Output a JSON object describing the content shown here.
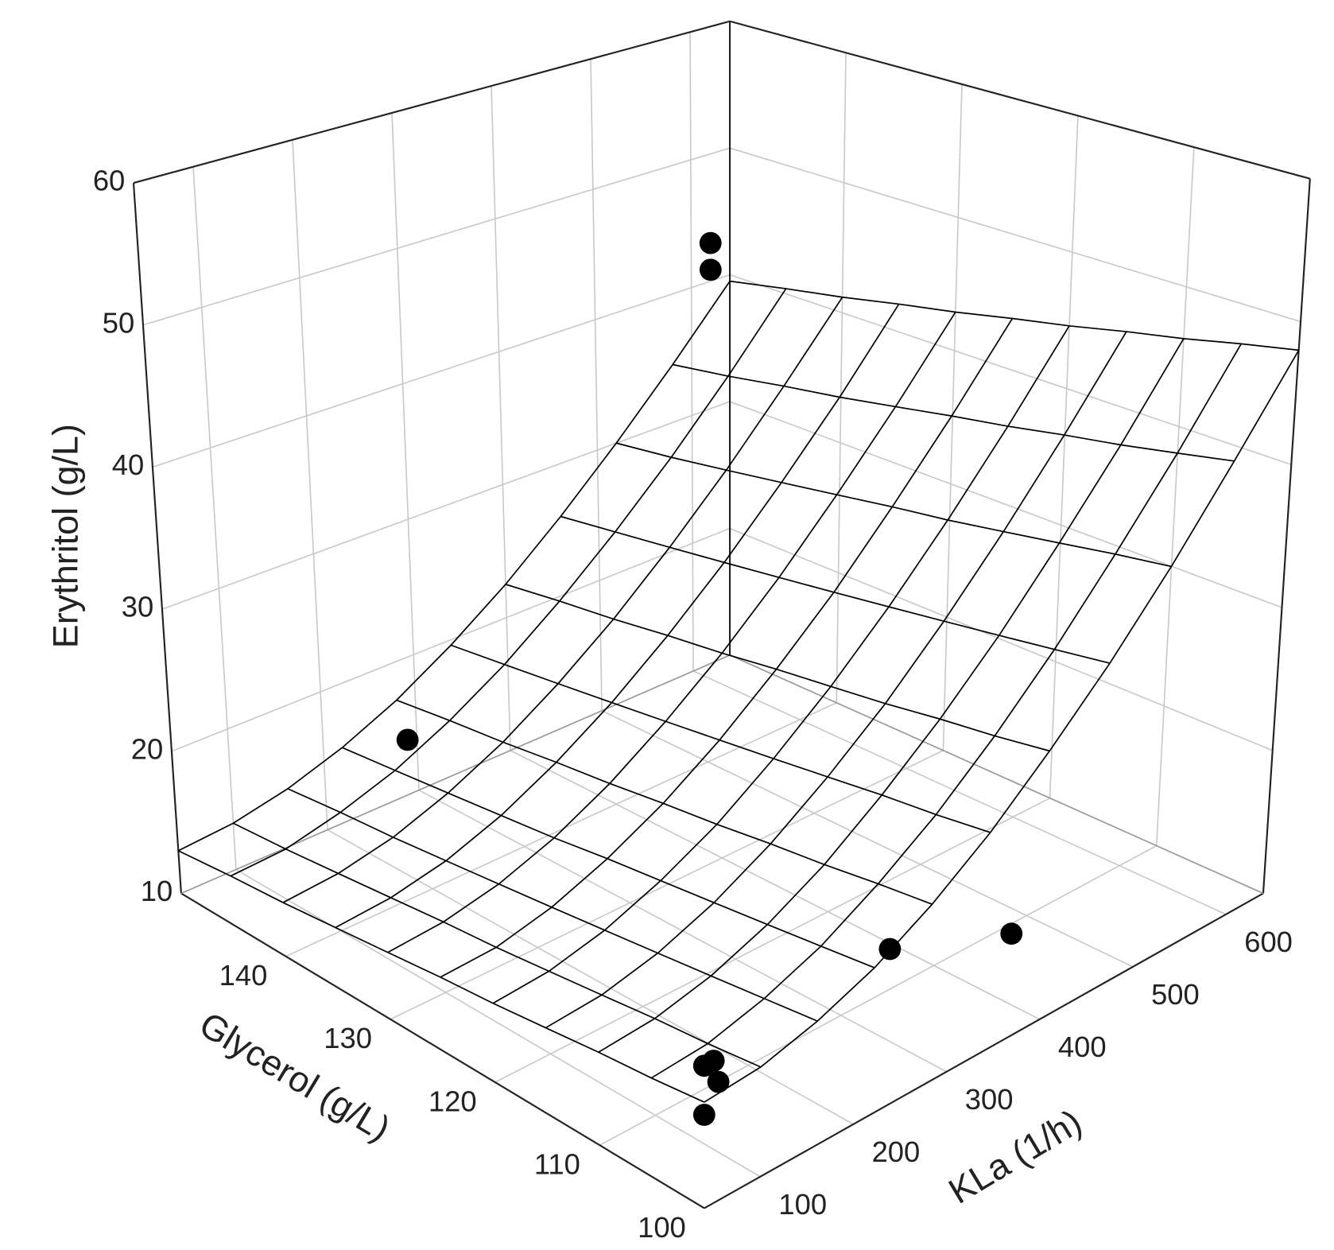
{
  "chart_data": {
    "type": "surface3d",
    "x_label": "Glycerol (g/L)",
    "y_label": "KLa (1/h)",
    "z_label": "Erythritol (g/L)",
    "xlim": [
      100,
      150
    ],
    "xticks": [
      100,
      110,
      120,
      130,
      140
    ],
    "ylim": [
      40,
      640
    ],
    "yticks": [
      100,
      200,
      300,
      400,
      500,
      600
    ],
    "zlim": [
      10,
      60
    ],
    "zticks": [
      10,
      20,
      30,
      40,
      50,
      60
    ],
    "grid": true,
    "grid_color": "#c8c8c8",
    "surface_color": "#000000",
    "surface": {
      "x": [
        100,
        105,
        110,
        115,
        120,
        125,
        130,
        135,
        140,
        145,
        150
      ],
      "y": [
        40,
        100,
        160,
        220,
        280,
        340,
        400,
        460,
        520,
        580,
        640
      ],
      "z": [
        [
          16.7,
          17.0,
          18.0,
          19.5,
          21.7,
          24.5,
          28.0,
          32.0,
          36.7,
          42.1,
          48.0
        ],
        [
          16.3,
          16.6,
          17.6,
          19.1,
          21.3,
          24.0,
          27.4,
          31.4,
          36.1,
          41.3,
          47.2
        ],
        [
          16.0,
          16.3,
          17.2,
          18.7,
          20.8,
          23.6,
          26.9,
          30.8,
          35.4,
          40.5,
          46.3
        ],
        [
          15.6,
          15.9,
          16.8,
          18.3,
          20.4,
          23.1,
          26.3,
          30.2,
          34.7,
          39.8,
          45.5
        ],
        [
          15.2,
          15.5,
          16.4,
          17.9,
          19.9,
          22.6,
          25.8,
          29.6,
          34.0,
          39.0,
          44.6
        ],
        [
          14.9,
          15.1,
          16.0,
          17.5,
          19.5,
          22.1,
          25.3,
          29.0,
          33.4,
          38.3,
          43.8
        ],
        [
          14.5,
          14.8,
          15.6,
          17.0,
          19.0,
          21.6,
          24.7,
          28.4,
          32.7,
          37.5,
          42.9
        ],
        [
          14.1,
          14.4,
          15.2,
          16.6,
          18.6,
          21.1,
          24.2,
          27.8,
          32.0,
          36.7,
          42.1
        ],
        [
          13.7,
          14.0,
          14.8,
          16.2,
          18.1,
          20.6,
          23.6,
          27.2,
          31.3,
          36.0,
          41.2
        ],
        [
          13.4,
          13.6,
          14.5,
          15.8,
          17.7,
          20.1,
          23.1,
          26.6,
          30.6,
          35.2,
          40.4
        ],
        [
          13.0,
          13.3,
          14.1,
          15.4,
          17.2,
          19.6,
          22.5,
          26.0,
          30.0,
          34.5,
          39.5
        ]
      ]
    },
    "points": {
      "color": "#000000",
      "x": [
        150,
        150,
        150,
        100,
        100,
        100,
        100,
        100,
        100
      ],
      "y": [
        620,
        620,
        290,
        236,
        366,
        40,
        50,
        55,
        40
      ],
      "z": [
        43.0,
        40.9,
        14.0,
        20.2,
        16.9,
        19.0,
        19.0,
        17.5,
        15.9
      ]
    }
  }
}
